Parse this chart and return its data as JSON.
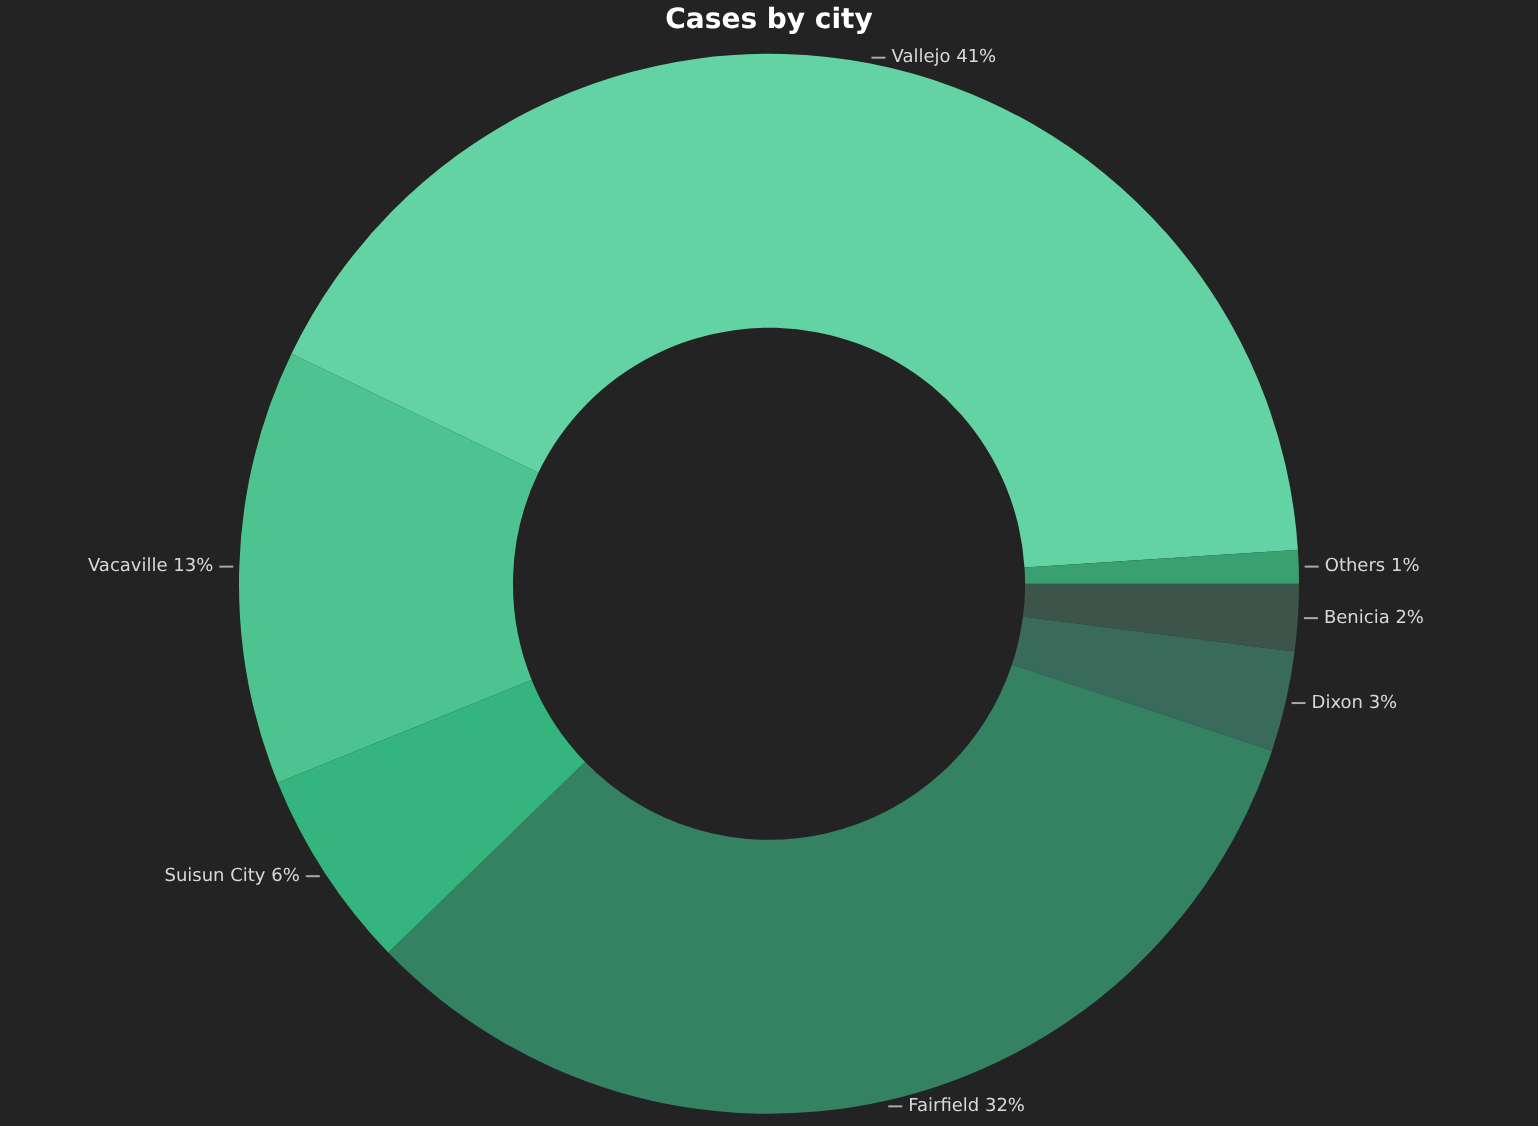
{
  "chart_data": {
    "type": "donut",
    "title": "Cases by city",
    "categories": [
      "Benicia",
      "Dixon",
      "Fairfield",
      "Suisun City",
      "Vacaville",
      "Vallejo",
      "Others"
    ],
    "values": [
      2,
      3,
      32,
      6,
      13,
      41,
      1
    ],
    "value_labels": [
      "2%",
      "3%",
      "32%",
      "6%",
      "13%",
      "41%",
      "1%"
    ],
    "colors": [
      "#3c5449",
      "#3a6a5a",
      "#358263",
      "#33b57d",
      "#4dc490",
      "#64d3a3",
      "#3aa070"
    ],
    "legend": false
  }
}
